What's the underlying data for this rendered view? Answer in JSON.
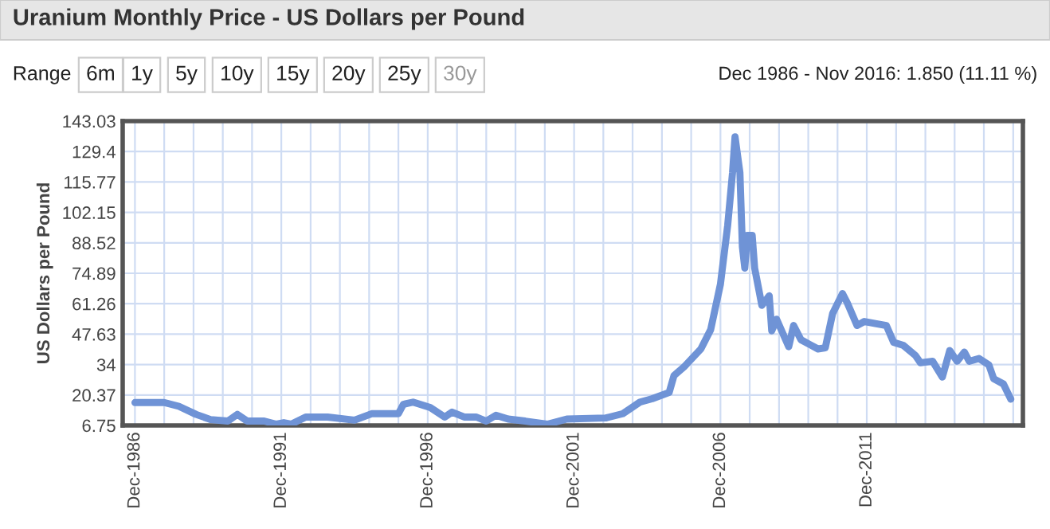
{
  "chart_data": {
    "type": "line",
    "title": "Uranium Monthly Price - US Dollars per Pound",
    "ylabel": "US Dollars per Pound",
    "annotations": [
      "Range",
      "6m",
      "1y",
      "5y",
      "10y",
      "15y",
      "20y",
      "25y",
      "30y",
      "Dec 1986 - Nov 2016: 1.850 (11.11 %)"
    ],
    "x": [
      "1986-12",
      "1987-12",
      "1988-06",
      "1989-01",
      "1989-07",
      "1990-02",
      "1990-06",
      "1990-10",
      "1991-05",
      "1991-10",
      "1992-01",
      "1992-04",
      "1992-10",
      "1993-07",
      "1994-06",
      "1995-01",
      "1995-12",
      "1996-02",
      "1996-06",
      "1997-01",
      "1997-07",
      "1997-10",
      "1998-03",
      "1998-08",
      "1998-12",
      "1999-04",
      "1999-09",
      "2000-04",
      "2001-01",
      "2001-09",
      "2003-01",
      "2003-08",
      "2004-03",
      "2004-08",
      "2005-03",
      "2005-05",
      "2005-09",
      "2006-04",
      "2006-08",
      "2006-12",
      "2007-03",
      "2007-05",
      "2007-06",
      "2007-08",
      "2007-09",
      "2007-10",
      "2007-11",
      "2008-01",
      "2008-02",
      "2008-05",
      "2008-08",
      "2008-09",
      "2008-11",
      "2009-04",
      "2009-06",
      "2009-09",
      "2010-04",
      "2010-07",
      "2010-10",
      "2011-02",
      "2011-04",
      "2011-08",
      "2011-11",
      "2012-08",
      "2012-11",
      "2013-03",
      "2013-08",
      "2013-10",
      "2014-03",
      "2014-07",
      "2014-10",
      "2015-01",
      "2015-04",
      "2015-06",
      "2015-10",
      "2016-02",
      "2016-04",
      "2016-08",
      "2016-11"
    ],
    "series": [
      {
        "color": "#6f93d6",
        "values": [
          17,
          17,
          15.3,
          11.7,
          9.4,
          8.7,
          11.7,
          8.7,
          8.7,
          7.3,
          8,
          7.3,
          10.5,
          10.5,
          9.1,
          12,
          12,
          16.2,
          17.2,
          14.8,
          10.5,
          12.7,
          10.5,
          10.5,
          8.7,
          11.3,
          9.6,
          8.7,
          7.3,
          9.6,
          10.1,
          12,
          17.2,
          18.7,
          21.5,
          29.1,
          32.9,
          41,
          49.6,
          70,
          96.2,
          120,
          136,
          120,
          86.7,
          77.2,
          91.9,
          91.9,
          77.2,
          60.5,
          64.8,
          49.1,
          54.3,
          42,
          51.5,
          45.1,
          41,
          41.5,
          56.9,
          65.8,
          61.7,
          51.5,
          53.3,
          51.5,
          43.9,
          42.6,
          38,
          34.8,
          35.5,
          28.4,
          40.3,
          35.5,
          39.6,
          35.5,
          36.7,
          33.9,
          27.7,
          25.3,
          18.5
        ]
      }
    ],
    "xlim": [
      "1986-07",
      "2017-04"
    ],
    "xticks": [
      {
        "value": "1986-12",
        "label": "Dec-1986"
      },
      {
        "value": "1991-12",
        "label": "Dec-1991"
      },
      {
        "value": "1996-12",
        "label": "Dec-1996"
      },
      {
        "value": "2001-12",
        "label": "Dec-2001"
      },
      {
        "value": "2006-12",
        "label": "Dec-2006"
      },
      {
        "value": "2011-12",
        "label": "Dec-2011"
      }
    ],
    "ylim": [
      6.75,
      143.03
    ],
    "yticks": [
      6.75,
      20.37,
      34,
      47.63,
      61.26,
      74.89,
      88.52,
      102.15,
      115.77,
      129.4,
      143.03
    ],
    "grid": true,
    "line_style": "solid",
    "legend": false
  }
}
